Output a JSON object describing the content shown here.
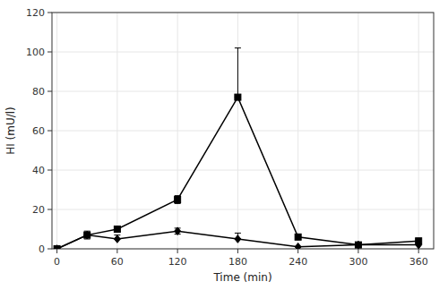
{
  "chart_data": {
    "type": "line",
    "x": [
      0,
      30,
      60,
      120,
      180,
      240,
      300,
      360
    ],
    "series": [
      {
        "values": [
          0,
          7,
          5,
          9,
          5,
          1,
          2,
          2
        ],
        "error_up": [
          0,
          2,
          2,
          1.5,
          3,
          0,
          0,
          0
        ],
        "error_down": [
          0,
          2,
          0,
          1.5,
          0,
          0,
          0,
          0
        ],
        "marker": "diamond",
        "color": "#000000"
      },
      {
        "values": [
          0,
          7,
          10,
          25,
          77,
          6,
          2,
          4
        ],
        "error_up": [
          0,
          1,
          1.5,
          2,
          25,
          0,
          0,
          0
        ],
        "error_down": [
          0,
          1,
          0,
          2,
          0,
          0,
          0,
          0
        ],
        "marker": "square",
        "color": "#000000"
      }
    ],
    "xlabel": "Time (min)",
    "ylabel": "HI (mU/l)",
    "xlim": [
      -5,
      375
    ],
    "ylim": [
      0,
      120
    ],
    "xticks": [
      0,
      60,
      120,
      180,
      240,
      300,
      360
    ],
    "yticks": [
      0,
      20,
      40,
      60,
      80,
      100,
      120
    ]
  }
}
